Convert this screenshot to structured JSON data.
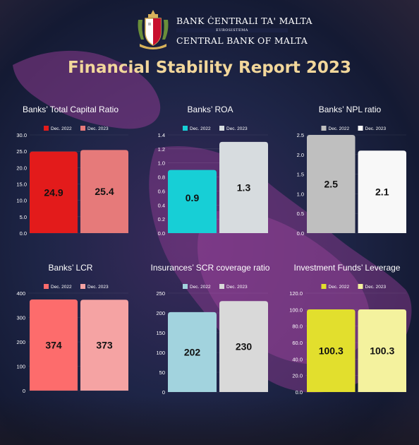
{
  "header": {
    "bank_name_maltese": "BANK ĊENTRALI TA' MALTA",
    "eurosystem": "EUROSISTEMA",
    "bank_name_english": "CENTRAL BANK OF MALTA",
    "report_title": "Financial Stability Report 2023"
  },
  "colors": {
    "title": "#f2d79b",
    "background": "#1e2547",
    "map_overlay": "#8a3a8e"
  },
  "chart_data": [
    {
      "type": "bar",
      "title": "Banks’ Total Capital Ratio",
      "categories": [
        "Dec. 2022",
        "Dec. 2023"
      ],
      "values": [
        24.9,
        25.4
      ],
      "value_labels": [
        "24.9",
        "25.4"
      ],
      "colors": [
        "#e31b1b",
        "#e67a7a"
      ],
      "ylim": [
        0,
        30
      ],
      "ticks": [
        0,
        5,
        10,
        15,
        20,
        25,
        30
      ],
      "tick_labels": [
        "0.0",
        "5.0",
        "10.0",
        "15.0",
        "20.0",
        "25.0",
        "30.0"
      ],
      "legend_position": "top"
    },
    {
      "type": "bar",
      "title": "Banks’ ROA",
      "categories": [
        "Dec. 2022",
        "Dec. 2023"
      ],
      "values": [
        0.9,
        1.3
      ],
      "value_labels": [
        "0.9",
        "1.3"
      ],
      "colors": [
        "#17cfd6",
        "#d7dcdf"
      ],
      "ylim": [
        0,
        1.4
      ],
      "ticks": [
        0,
        0.2,
        0.4,
        0.6,
        0.8,
        1.0,
        1.2,
        1.4
      ],
      "tick_labels": [
        "0.0",
        "0.2",
        "0.4",
        "0.6",
        "0.8",
        "1.0",
        "1.2",
        "1.4"
      ],
      "legend_position": "top"
    },
    {
      "type": "bar",
      "title": "Banks’ NPL ratio",
      "categories": [
        "Dec. 2022",
        "Dec. 2023"
      ],
      "values": [
        2.5,
        2.1
      ],
      "value_labels": [
        "2.5",
        "2.1"
      ],
      "colors": [
        "#bfbfbf",
        "#f8f8f8"
      ],
      "ylim": [
        0,
        2.5
      ],
      "ticks": [
        0,
        0.5,
        1.0,
        1.5,
        2.0,
        2.5
      ],
      "tick_labels": [
        "0.0",
        "0.5",
        "1.0",
        "1.5",
        "2.0",
        "2.5"
      ],
      "legend_position": "top"
    },
    {
      "type": "bar",
      "title": "Banks’ LCR",
      "categories": [
        "Dec. 2022",
        "Dec. 2023"
      ],
      "values": [
        374,
        373
      ],
      "value_labels": [
        "374",
        "373"
      ],
      "colors": [
        "#fd6c6c",
        "#f5a3a3"
      ],
      "ylim": [
        0,
        400
      ],
      "ticks": [
        0,
        100,
        200,
        300,
        400
      ],
      "tick_labels": [
        "0",
        "100",
        "200",
        "300",
        "400"
      ],
      "legend_position": "top"
    },
    {
      "type": "bar",
      "title": "Insurances’  SCR coverage ratio",
      "categories": [
        "Dec. 2022",
        "Dec. 2023"
      ],
      "values": [
        202,
        230
      ],
      "value_labels": [
        "202",
        "230"
      ],
      "colors": [
        "#a2d3de",
        "#d9d9d9"
      ],
      "ylim": [
        0,
        250
      ],
      "ticks": [
        0,
        50,
        100,
        150,
        200,
        250
      ],
      "tick_labels": [
        "0",
        "50",
        "100",
        "150",
        "200",
        "250"
      ],
      "legend_position": "top"
    },
    {
      "type": "bar",
      "title": "Investment Funds’ Leverage",
      "categories": [
        "Dec. 2022",
        "Dec. 2023"
      ],
      "values": [
        100.3,
        100.3
      ],
      "value_labels": [
        "100.3",
        "100.3"
      ],
      "colors": [
        "#e2df2d",
        "#f4f29e"
      ],
      "ylim": [
        0,
        120
      ],
      "ticks": [
        0,
        20,
        40,
        60,
        80,
        100,
        120
      ],
      "tick_labels": [
        "0.0",
        "20.0",
        "40.0",
        "60.0",
        "80.0",
        "100.0",
        "120.0"
      ],
      "legend_position": "top"
    }
  ]
}
